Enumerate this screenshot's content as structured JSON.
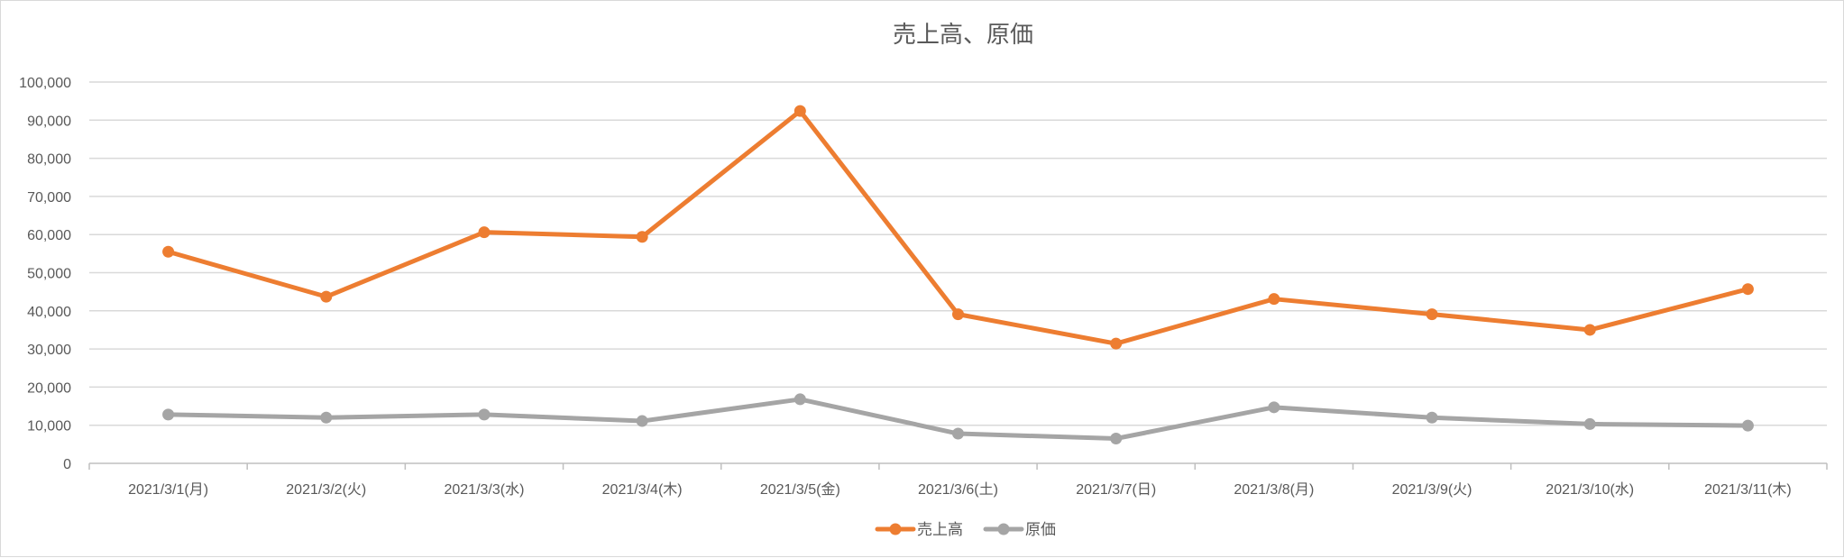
{
  "chart_data": {
    "type": "line",
    "title": "売上高、原価",
    "categories": [
      "2021/3/1(月)",
      "2021/3/2(火)",
      "2021/3/3(水)",
      "2021/3/4(木)",
      "2021/3/5(金)",
      "2021/3/6(土)",
      "2021/3/7(日)",
      "2021/3/8(月)",
      "2021/3/9(火)",
      "2021/3/10(水)",
      "2021/3/11(木)"
    ],
    "y_ticks": [
      "0",
      "10,000",
      "20,000",
      "30,000",
      "40,000",
      "50,000",
      "60,000",
      "70,000",
      "80,000",
      "90,000",
      "100,000"
    ],
    "ylim": [
      0,
      100000
    ],
    "grid": true,
    "legend_position": "bottom",
    "series": [
      {
        "name": "売上高",
        "color": "#ED7D31",
        "values": [
          55500,
          43700,
          60600,
          59400,
          92400,
          39100,
          31400,
          43100,
          39100,
          35000,
          45700
        ]
      },
      {
        "name": "原価",
        "color": "#A5A5A5",
        "values": [
          12800,
          12000,
          12800,
          11100,
          16800,
          7800,
          6500,
          14700,
          12000,
          10300,
          9900
        ]
      }
    ]
  }
}
